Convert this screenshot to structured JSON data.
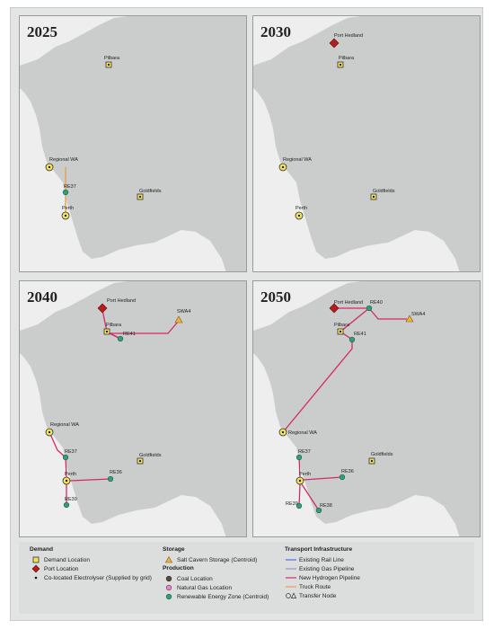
{
  "panels": [
    {
      "year": "2025",
      "labels": {
        "pilbara": "Pilbara",
        "regional": "Regional WA",
        "re37": "RE37",
        "perth": "Perth",
        "goldfields": "Goldfields"
      }
    },
    {
      "year": "2030",
      "labels": {
        "porthedland": "Port Hedland",
        "pilbara": "Pilbara",
        "regional": "Regional WA",
        "goldfields": "Goldfields",
        "perth": "Perth"
      }
    },
    {
      "year": "2040",
      "labels": {
        "porthedland": "Port Hedland",
        "pilbara": "Pilbara",
        "re41": "RE41",
        "swa4": "SWA4",
        "regional": "Regional WA",
        "re37": "RE37",
        "perth": "Perth",
        "re36": "RE36",
        "goldfields": "Goldfields",
        "re39": "RE39"
      }
    },
    {
      "year": "2050",
      "labels": {
        "porthedland": "Port Hedland",
        "re40": "RE40",
        "swa4": "SWA4",
        "pilbara": "Pilbara",
        "re41": "RE41",
        "regional": "Regional WA",
        "re37": "RE37",
        "goldfields": "Goldfields",
        "perth": "Perth",
        "re36": "RE36",
        "re39": "RE39",
        "re38": "RE38"
      }
    }
  ],
  "legend": {
    "demand_title": "Demand",
    "demand_location": "Demand Location",
    "port_location": "Port Location",
    "colocated": "Co-located Electrolyser (Supplied by grid)",
    "storage_title": "Storage",
    "salt_cavern": "Salt Cavern Storage (Centroid)",
    "production_title": "Production",
    "coal": "Coal Location",
    "gas": "Natural Gas Location",
    "rez": "Renewable Energy Zone (Centroid)",
    "transport_title": "Transport Infrastructure",
    "rail": "Existing Rail Line",
    "gas_pipeline": "Existing Gas Pipeline",
    "h2_pipeline": "New Hydrogen Pipeline",
    "truck": "Truck Route",
    "transfer": "Transfer Node"
  },
  "colors": {
    "ocean": "#eeeeee",
    "land": "#cbcdcd",
    "h2_pipeline": "#d42a67",
    "truck": "#e3a356",
    "rez": "#2fa07c",
    "port": "#b81d1d",
    "demand": "#f1e05a",
    "storage": "#f0b23a",
    "rail": "#4e6fd6",
    "gas_pipeline": "#9b8fd0"
  }
}
